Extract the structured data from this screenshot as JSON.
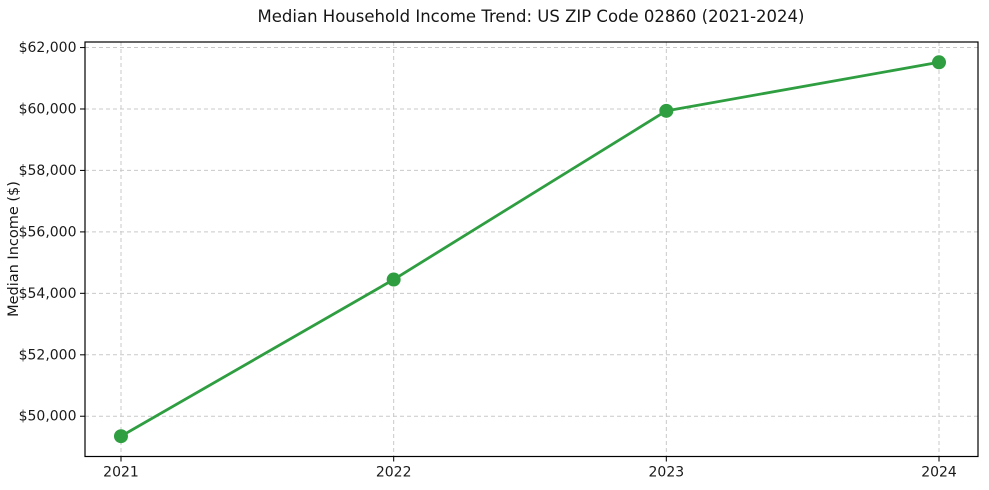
{
  "chart_data": {
    "type": "line",
    "title": "Median Household Income Trend: US ZIP Code 02860 (2021-2024)",
    "xlabel": "",
    "ylabel": "Median Income ($)",
    "x": [
      2021,
      2022,
      2023,
      2024
    ],
    "x_tick_labels": [
      "2021",
      "2022",
      "2023",
      "2024"
    ],
    "series": [
      {
        "name": "Median Household Income",
        "values": [
          49350,
          54450,
          59940,
          61520
        ]
      }
    ],
    "y_ticks": [
      {
        "value": 50000,
        "label": "$50,000"
      },
      {
        "value": 52000,
        "label": "$52,000"
      },
      {
        "value": 54000,
        "label": "$54,000"
      },
      {
        "value": 56000,
        "label": "$56,000"
      },
      {
        "value": 58000,
        "label": "$58,000"
      },
      {
        "value": 60000,
        "label": "$60,000"
      },
      {
        "value": 62000,
        "label": "$62,000"
      }
    ],
    "ylim": [
      48690,
      62180
    ],
    "xlim": [
      2020.868,
      2024.143
    ],
    "grid": true,
    "legend": "none",
    "line_color": "#2e9e41",
    "marker": "circle",
    "marker_radius": 7
  }
}
